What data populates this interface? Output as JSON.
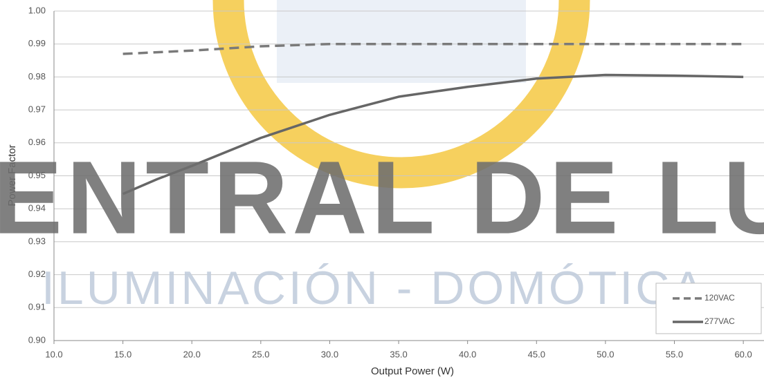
{
  "chart_data": {
    "type": "line",
    "xlabel": "Output Power (W)",
    "ylabel": "Power Factor",
    "x": [
      15,
      17.5,
      20,
      25,
      30,
      35,
      40,
      45,
      50,
      55,
      60
    ],
    "series": [
      {
        "name": "120VAC",
        "color": "#7a7a7a",
        "dash": true,
        "values": [
          0.987,
          0.9875,
          0.988,
          0.9893,
          0.99,
          0.99,
          0.99,
          0.99,
          0.99,
          0.99,
          0.99
        ]
      },
      {
        "name": "277VAC",
        "color": "#666666",
        "dash": false,
        "values": [
          0.9445,
          0.949,
          0.953,
          0.9615,
          0.9685,
          0.974,
          0.977,
          0.9795,
          0.9806,
          0.9804,
          0.98
        ]
      }
    ],
    "xlim": [
      10,
      61.5
    ],
    "xticks": [
      {
        "value": 10,
        "label": "10.0"
      },
      {
        "value": 15,
        "label": "15.0"
      },
      {
        "value": 20,
        "label": "20.0"
      },
      {
        "value": 25,
        "label": "25.0"
      },
      {
        "value": 30,
        "label": "30.0"
      },
      {
        "value": 35,
        "label": "35.0"
      },
      {
        "value": 40,
        "label": "40.0"
      },
      {
        "value": 45,
        "label": "45.0"
      },
      {
        "value": 50,
        "label": "50.0"
      },
      {
        "value": 55,
        "label": "55.0"
      },
      {
        "value": 60,
        "label": "60.0"
      }
    ],
    "ylim": [
      0.9,
      1.0
    ],
    "yticks": [
      {
        "value": 0.9,
        "label": "0.90"
      },
      {
        "value": 0.91,
        "label": "0.91"
      },
      {
        "value": 0.92,
        "label": "0.92"
      },
      {
        "value": 0.93,
        "label": "0.93"
      },
      {
        "value": 0.94,
        "label": "0.94"
      },
      {
        "value": 0.95,
        "label": "0.95"
      },
      {
        "value": 0.96,
        "label": "0.96"
      },
      {
        "value": 0.97,
        "label": "0.97"
      },
      {
        "value": 0.98,
        "label": "0.98"
      },
      {
        "value": 0.99,
        "label": "0.99"
      },
      {
        "value": 1.0,
        "label": "1.00"
      }
    ],
    "grid": true,
    "legend": "lower right",
    "watermark": [
      "ENTRAL DE LU",
      "ILUMINACIÓN - DOMÓTICA"
    ]
  }
}
